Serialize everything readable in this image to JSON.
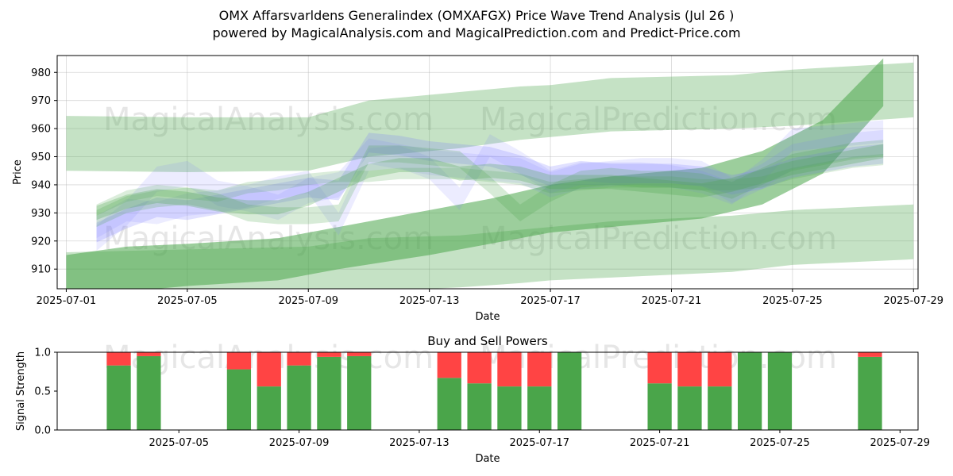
{
  "title_line1": "OMX Affarsvarldens Generalindex (OMXAFGX) Price Wave Trend Analysis (Jul 26 )",
  "title_line2": "powered by MagicalAnalysis.com and MagicalPrediction.com and Predict-Price.com",
  "watermarks": [
    "MagicalAnalysis.com",
    "MagicalPrediction.com"
  ],
  "colors": {
    "green": "#4aa54a",
    "red": "#ff4444",
    "blue": "#7777ff",
    "band_green": "#7fbf7f"
  },
  "chart_data": [
    {
      "type": "area",
      "title": "",
      "xlabel": "Date",
      "ylabel": "Price",
      "xlim": [
        "2025-07-01",
        "2025-07-29"
      ],
      "ylim": [
        903,
        986
      ],
      "x_ticks": [
        "2025-07-01",
        "2025-07-05",
        "2025-07-09",
        "2025-07-13",
        "2025-07-17",
        "2025-07-21",
        "2025-07-25",
        "2025-07-29"
      ],
      "y_ticks": [
        910,
        920,
        930,
        940,
        950,
        960,
        970,
        980
      ],
      "grid": true,
      "series": [
        {
          "color": "green",
          "opacity": 0.32,
          "x": [
            "2025-07-01",
            "2025-07-05",
            "2025-07-09",
            "2025-07-11",
            "2025-07-14",
            "2025-07-16",
            "2025-07-17",
            "2025-07-19",
            "2025-07-23",
            "2025-07-25",
            "2025-07-29"
          ],
          "upper": [
            964.5,
            964.0,
            964.0,
            970.0,
            973.0,
            975.0,
            975.5,
            978.0,
            979.0,
            981.0,
            983.5
          ],
          "lower": [
            945.0,
            944.5,
            945.0,
            950.0,
            953.0,
            956.0,
            957.0,
            959.0,
            960.0,
            961.0,
            964.0
          ]
        },
        {
          "color": "green",
          "opacity": 0.32,
          "x": [
            "2025-07-01",
            "2025-07-05",
            "2025-07-09",
            "2025-07-11",
            "2025-07-14",
            "2025-07-16",
            "2025-07-17",
            "2025-07-19",
            "2025-07-23",
            "2025-07-25",
            "2025-07-29"
          ],
          "upper": [
            916.0,
            917.0,
            918.0,
            921.0,
            922.0,
            924.0,
            925.0,
            927.0,
            929.0,
            931.0,
            933.0
          ],
          "lower": [
            897.0,
            899.0,
            900.0,
            902.0,
            903.5,
            905.0,
            906.0,
            907.0,
            909.0,
            911.5,
            913.5
          ]
        },
        {
          "color": "green",
          "opacity": 0.55,
          "x": [
            "2025-07-01",
            "2025-07-03",
            "2025-07-05",
            "2025-07-08",
            "2025-07-10",
            "2025-07-13",
            "2025-07-15",
            "2025-07-17",
            "2025-07-19",
            "2025-07-22",
            "2025-07-24",
            "2025-07-26",
            "2025-07-28"
          ],
          "upper": [
            915,
            918,
            919,
            921,
            925,
            931,
            935,
            940,
            943,
            946,
            952,
            963,
            985
          ],
          "lower": [
            897,
            902,
            904,
            906,
            910,
            915,
            919,
            923,
            925,
            928,
            933,
            944,
            968
          ]
        }
      ],
      "wave_series": {
        "x": [
          "2025-07-02",
          "2025-07-03",
          "2025-07-04",
          "2025-07-05",
          "2025-07-06",
          "2025-07-07",
          "2025-07-08",
          "2025-07-09",
          "2025-07-10",
          "2025-07-11",
          "2025-07-12",
          "2025-07-13",
          "2025-07-14",
          "2025-07-15",
          "2025-07-16",
          "2025-07-17",
          "2025-07-18",
          "2025-07-19",
          "2025-07-20",
          "2025-07-21",
          "2025-07-22",
          "2025-07-23",
          "2025-07-24",
          "2025-07-25",
          "2025-07-26",
          "2025-07-27",
          "2025-07-28"
        ],
        "bands": [
          {
            "color": "blue",
            "values": [
              923,
              928,
              932,
              931,
              933,
              935,
              937,
              939,
              938,
              955,
              954,
              952,
              951,
              950,
              947,
              943,
              945,
              944,
              944,
              944,
              943,
              940,
              942,
              946,
              948,
              950,
              951
            ],
            "half_width": 3.5,
            "opacity": 0.22
          },
          {
            "color": "blue",
            "values": [
              921,
              930,
              942,
              944,
              937,
              935,
              932,
              938,
              940,
              952,
              950,
              948,
              947,
              946,
              945,
              940,
              943,
              944,
              945,
              945,
              944,
              938,
              943,
              950,
              952,
              954,
              955
            ],
            "half_width": 4.5,
            "opacity": 0.14
          },
          {
            "color": "blue",
            "values": [
              925,
              931,
              930,
              933,
              934,
              936,
              939,
              941,
              926,
              949,
              950,
              946,
              935,
              954,
              948,
              941,
              944,
              944,
              944,
              943,
              941,
              937,
              945,
              956,
              957,
              958,
              959
            ],
            "half_width": 4.0,
            "opacity": 0.14
          },
          {
            "color": "green",
            "values": [
              928,
              933,
              935,
              936,
              934,
              930,
              929,
              929,
              930,
              951,
              951,
              950,
              949,
              940,
              930,
              937,
              942,
              943,
              942,
              942,
              941,
              938,
              943,
              948,
              950,
              952,
              953
            ],
            "half_width": 3.0,
            "opacity": 0.22
          },
          {
            "color": "green",
            "values": [
              930,
              934,
              936,
              935,
              933,
              932,
              932,
              935,
              940,
              945,
              947,
              947,
              944,
              945,
              944,
              941,
              941,
              941,
              940,
              939,
              938,
              940,
              943,
              946,
              948,
              950,
              952
            ],
            "half_width": 2.5,
            "opacity": 0.28
          },
          {
            "color": "green",
            "values": [
              931,
              936,
              938,
              937,
              936,
              939,
              940,
              942,
              943,
              943,
              944,
              944,
              944,
              943,
              942,
              939,
              940,
              941,
              941,
              941,
              940,
              940,
              941,
              944,
              946,
              948,
              949
            ],
            "half_width": 2.0,
            "opacity": 0.2
          }
        ]
      }
    },
    {
      "type": "bar",
      "title": "Buy and Sell Powers",
      "xlabel": "Date",
      "ylabel": "Signal Strength",
      "ylim": [
        0,
        1
      ],
      "y_ticks": [
        0.0,
        0.5,
        1.0
      ],
      "x_ticks": [
        "2025-07-05",
        "2025-07-09",
        "2025-07-13",
        "2025-07-17",
        "2025-07-21",
        "2025-07-25",
        "2025-07-29"
      ],
      "xlim": [
        "2025-07-01",
        "2025-07-29"
      ],
      "categories": [
        "2025-07-03",
        "2025-07-04",
        "2025-07-07",
        "2025-07-08",
        "2025-07-09",
        "2025-07-10",
        "2025-07-11",
        "2025-07-14",
        "2025-07-15",
        "2025-07-16",
        "2025-07-17",
        "2025-07-18",
        "2025-07-21",
        "2025-07-22",
        "2025-07-23",
        "2025-07-24",
        "2025-07-25",
        "2025-07-28"
      ],
      "series": [
        {
          "color": "green",
          "values": [
            0.83,
            0.95,
            0.78,
            0.56,
            0.83,
            0.94,
            0.95,
            0.67,
            0.6,
            0.56,
            0.56,
            1.0,
            0.6,
            0.56,
            0.56,
            1.0,
            1.0,
            0.94
          ]
        },
        {
          "color": "red",
          "values": [
            0.17,
            0.05,
            0.22,
            0.44,
            0.17,
            0.06,
            0.05,
            0.33,
            0.4,
            0.44,
            0.44,
            0.0,
            0.4,
            0.44,
            0.44,
            0.0,
            0.0,
            0.06
          ]
        }
      ]
    }
  ]
}
